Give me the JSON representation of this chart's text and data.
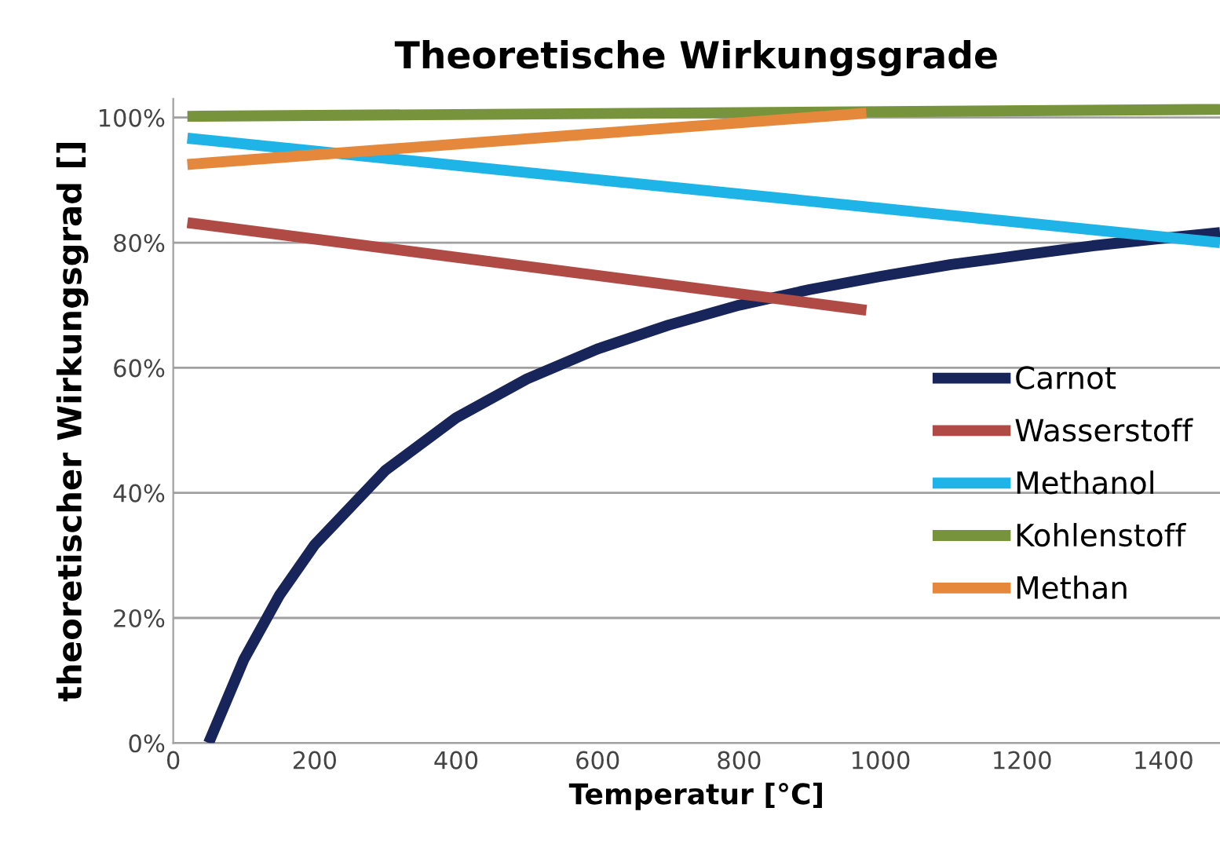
{
  "chart_data": {
    "type": "line",
    "title": "Theoretische Wirkungsgrade",
    "xlabel": "Temperatur [°C]",
    "ylabel": "theoretischer Wirkungsgrad []",
    "xlim": [
      0,
      1480
    ],
    "xticks": [
      0,
      200,
      400,
      600,
      800,
      1000,
      1200,
      1400
    ],
    "ylim": [
      0,
      103
    ],
    "yticks": [
      {
        "value": 0,
        "label": "0%"
      },
      {
        "value": 20,
        "label": "20%"
      },
      {
        "value": 40,
        "label": "40%"
      },
      {
        "value": 60,
        "label": "60%"
      },
      {
        "value": 80,
        "label": "80%"
      },
      {
        "value": 100,
        "label": "100%"
      }
    ],
    "grid": "y",
    "legend": "right",
    "marker": "none",
    "line_style": "solid",
    "series": [
      {
        "name": "Carnot",
        "color": "#17255a",
        "x": [
          50,
          100,
          150,
          200,
          300,
          400,
          500,
          600,
          700,
          800,
          900,
          1000,
          1100,
          1200,
          1300,
          1400,
          1480
        ],
        "values": [
          0,
          13.4,
          23.6,
          31.7,
          43.6,
          52.0,
          58.2,
          63.0,
          66.8,
          70.0,
          72.5,
          74.6,
          76.5,
          78.0,
          79.5,
          80.7,
          81.6
        ]
      },
      {
        "name": "Wasserstoff",
        "color": "#b04a45",
        "x": [
          20,
          980
        ],
        "values": [
          83.2,
          69.2
        ]
      },
      {
        "name": "Methanol",
        "color": "#1fb4e8",
        "x": [
          20,
          1480
        ],
        "values": [
          96.7,
          80.0
        ]
      },
      {
        "name": "Kohlenstoff",
        "color": "#77933c",
        "x": [
          20,
          1480
        ],
        "values": [
          100.2,
          101.3
        ]
      },
      {
        "name": "Methan",
        "color": "#e5883c",
        "x": [
          20,
          980
        ],
        "values": [
          92.5,
          100.7
        ]
      }
    ]
  }
}
